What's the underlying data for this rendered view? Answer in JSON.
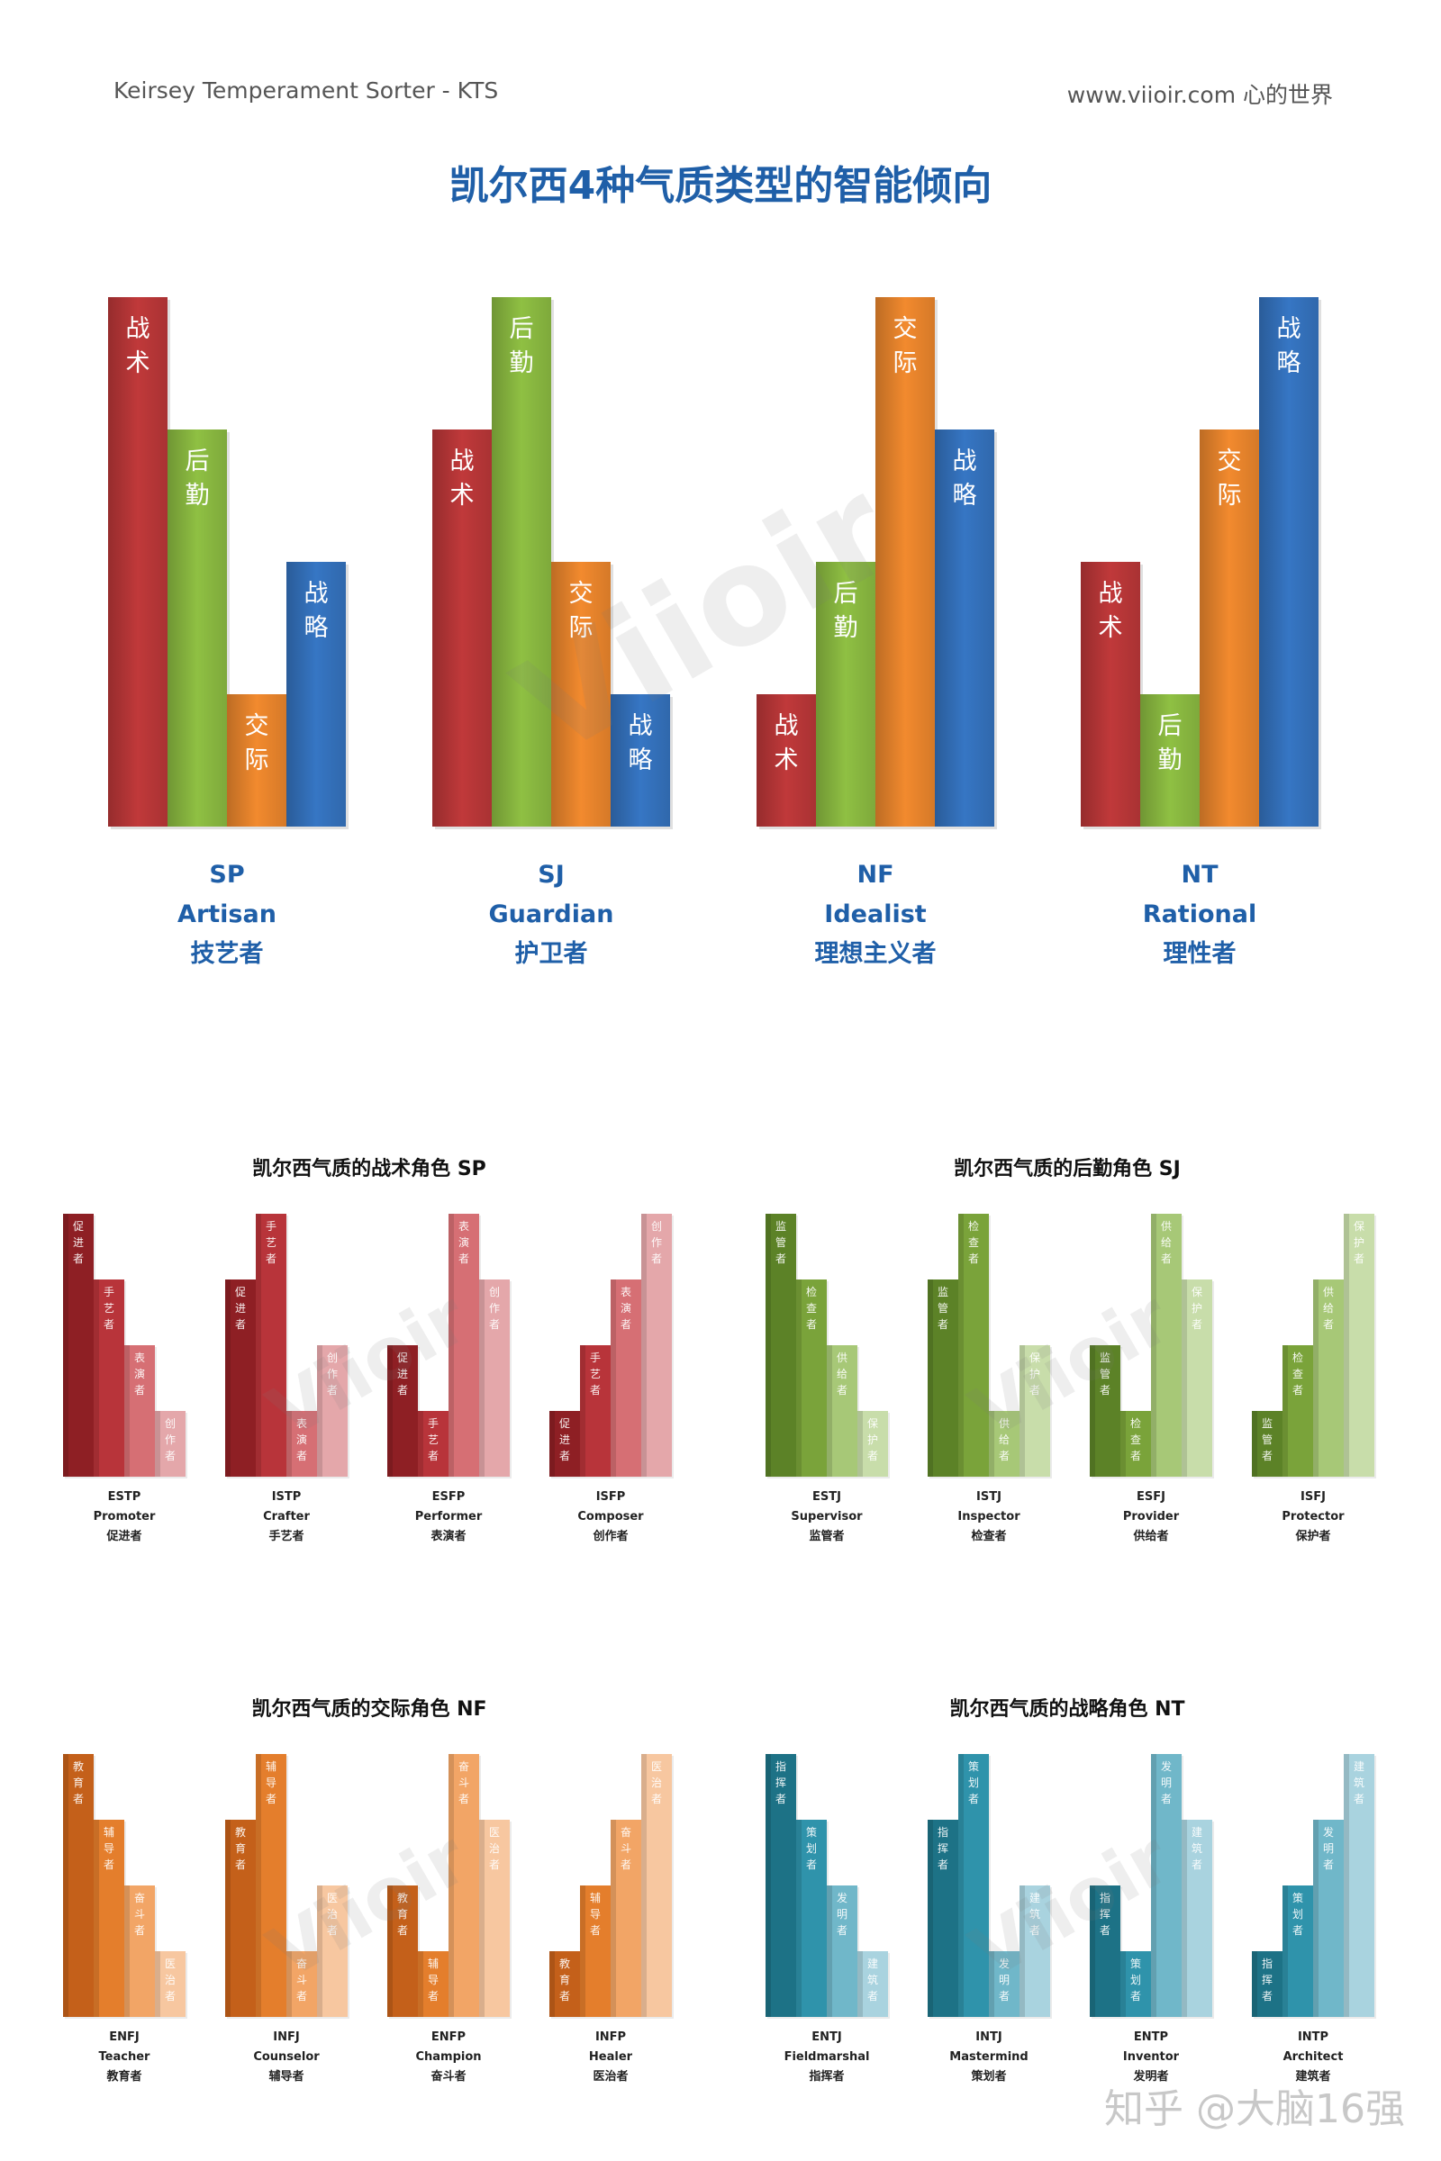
{
  "header": {
    "left": "Keirsey Temperament Sorter - KTS",
    "right": "www.viioir.com 心的世界"
  },
  "title": "凯尔西4种气质类型的智能倾向",
  "watermark": "Viioir",
  "footer_watermark": "知乎 @大脑16强",
  "colors": {
    "tactical": "#c0393a",
    "logistic": "#8fc043",
    "diplomatic": "#f28a2e",
    "strategic": "#3676c4",
    "label": "#1f5fa8"
  },
  "chart_data": [
    {
      "type": "bar",
      "title": "凯尔西4种气质类型的智能倾向",
      "ylim": [
        0,
        4
      ],
      "groups": [
        {
          "code": "SP",
          "en": "Artisan",
          "zh": "技艺者",
          "bars": [
            {
              "label": "战术",
              "value": 4,
              "color": "tactical"
            },
            {
              "label": "后勤",
              "value": 3,
              "color": "logistic"
            },
            {
              "label": "交际",
              "value": 1,
              "color": "diplomatic"
            },
            {
              "label": "战略",
              "value": 2,
              "color": "strategic"
            }
          ]
        },
        {
          "code": "SJ",
          "en": "Guardian",
          "zh": "护卫者",
          "bars": [
            {
              "label": "战术",
              "value": 3,
              "color": "tactical"
            },
            {
              "label": "后勤",
              "value": 4,
              "color": "logistic"
            },
            {
              "label": "交际",
              "value": 2,
              "color": "diplomatic"
            },
            {
              "label": "战略",
              "value": 1,
              "color": "strategic"
            }
          ]
        },
        {
          "code": "NF",
          "en": "Idealist",
          "zh": "理想主义者",
          "bars": [
            {
              "label": "战术",
              "value": 1,
              "color": "tactical"
            },
            {
              "label": "后勤",
              "value": 2,
              "color": "logistic"
            },
            {
              "label": "交际",
              "value": 4,
              "color": "diplomatic"
            },
            {
              "label": "战略",
              "value": 3,
              "color": "strategic"
            }
          ]
        },
        {
          "code": "NT",
          "en": "Rational",
          "zh": "理性者",
          "bars": [
            {
              "label": "战术",
              "value": 2,
              "color": "tactical"
            },
            {
              "label": "后勤",
              "value": 1,
              "color": "logistic"
            },
            {
              "label": "交际",
              "value": 3,
              "color": "diplomatic"
            },
            {
              "label": "战略",
              "value": 4,
              "color": "strategic"
            }
          ]
        }
      ]
    },
    {
      "type": "bar",
      "title": "凯尔西气质的战术角色 SP",
      "ylim": [
        0,
        4
      ],
      "palette": [
        "#8e1f24",
        "#b8343a",
        "#d66f74",
        "#e4a7aa"
      ],
      "categories": [
        "促进者",
        "手艺者",
        "表演者",
        "创作者"
      ],
      "types": [
        {
          "code": "ESTP",
          "en": "Promoter",
          "zh": "促进者",
          "values": [
            4,
            3,
            2,
            1
          ]
        },
        {
          "code": "ISTP",
          "en": "Crafter",
          "zh": "手艺者",
          "values": [
            3,
            4,
            1,
            2
          ]
        },
        {
          "code": "ESFP",
          "en": "Performer",
          "zh": "表演者",
          "values": [
            2,
            1,
            4,
            3
          ]
        },
        {
          "code": "ISFP",
          "en": "Composer",
          "zh": "创作者",
          "values": [
            1,
            2,
            3,
            4
          ]
        }
      ]
    },
    {
      "type": "bar",
      "title": "凯尔西气质的后勤角色 SJ",
      "ylim": [
        0,
        4
      ],
      "palette": [
        "#5c8227",
        "#7aa33a",
        "#a7c877",
        "#c8ddaa"
      ],
      "categories": [
        "监管者",
        "检查者",
        "供给者",
        "保护者"
      ],
      "types": [
        {
          "code": "ESTJ",
          "en": "Supervisor",
          "zh": "监管者",
          "values": [
            4,
            3,
            2,
            1
          ]
        },
        {
          "code": "ISTJ",
          "en": "Inspector",
          "zh": "检查者",
          "values": [
            3,
            4,
            1,
            2
          ]
        },
        {
          "code": "ESFJ",
          "en": "Provider",
          "zh": "供给者",
          "values": [
            2,
            1,
            4,
            3
          ]
        },
        {
          "code": "ISFJ",
          "en": "Protector",
          "zh": "保护者",
          "values": [
            1,
            2,
            3,
            4
          ]
        }
      ]
    },
    {
      "type": "bar",
      "title": "凯尔西气质的交际角色 NF",
      "ylim": [
        0,
        4
      ],
      "palette": [
        "#c4601a",
        "#e47e2c",
        "#f2a566",
        "#f7c7a0"
      ],
      "categories": [
        "教育者",
        "辅导者",
        "奋斗者",
        "医治者"
      ],
      "types": [
        {
          "code": "ENFJ",
          "en": "Teacher",
          "zh": "教育者",
          "values": [
            4,
            3,
            2,
            1
          ]
        },
        {
          "code": "INFJ",
          "en": "Counselor",
          "zh": "辅导者",
          "values": [
            3,
            4,
            1,
            2
          ]
        },
        {
          "code": "ENFP",
          "en": "Champion",
          "zh": "奋斗者",
          "values": [
            2,
            1,
            4,
            3
          ]
        },
        {
          "code": "INFP",
          "en": "Healer",
          "zh": "医治者",
          "values": [
            1,
            2,
            3,
            4
          ]
        }
      ]
    },
    {
      "type": "bar",
      "title": "凯尔西气质的战略角色 NT",
      "ylim": [
        0,
        4
      ],
      "palette": [
        "#1d7286",
        "#2f93ab",
        "#70b7c9",
        "#a9d3df"
      ],
      "categories": [
        "指挥者",
        "策划者",
        "发明者",
        "建筑者"
      ],
      "types": [
        {
          "code": "ENTJ",
          "en": "Fieldmarshal",
          "zh": "指挥者",
          "values": [
            4,
            3,
            2,
            1
          ]
        },
        {
          "code": "INTJ",
          "en": "Mastermind",
          "zh": "策划者",
          "values": [
            3,
            4,
            1,
            2
          ]
        },
        {
          "code": "ENTP",
          "en": "Inventor",
          "zh": "发明者",
          "values": [
            2,
            1,
            4,
            3
          ]
        },
        {
          "code": "INTP",
          "en": "Architect",
          "zh": "建筑者",
          "values": [
            1,
            2,
            3,
            4
          ]
        }
      ]
    }
  ]
}
